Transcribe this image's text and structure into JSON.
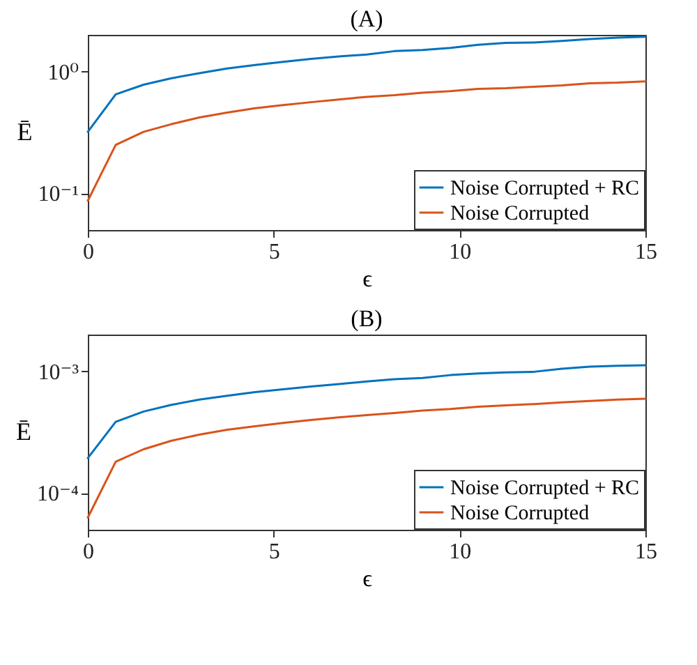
{
  "chart_data": [
    {
      "type": "line",
      "title": "(A)",
      "xlabel": "ϵ",
      "ylabel": "Ē",
      "log": "y",
      "grid": false,
      "legend": "bottom right",
      "marker": "none",
      "line_style": "solid",
      "x": [
        0,
        0.75,
        1.5,
        2.25,
        3,
        3.75,
        4.5,
        5.25,
        6,
        6.75,
        7.5,
        8.25,
        9,
        9.75,
        10.5,
        11.25,
        12,
        12.75,
        13.5,
        14.25,
        15
      ],
      "xlim": [
        0,
        15
      ],
      "xticks": [
        0,
        5,
        10,
        15
      ],
      "ylim": [
        0.05,
        2
      ],
      "yticks": [
        {
          "value": 0.1,
          "label": "10⁻¹"
        },
        {
          "value": 1,
          "label": "10⁰"
        }
      ],
      "series": [
        {
          "name": "Noise Corrupted + RC",
          "color": "#0072bd",
          "values": [
            0.32,
            0.65,
            0.78,
            0.88,
            0.97,
            1.06,
            1.13,
            1.2,
            1.27,
            1.33,
            1.38,
            1.47,
            1.5,
            1.56,
            1.66,
            1.72,
            1.73,
            1.78,
            1.85,
            1.9,
            1.93
          ]
        },
        {
          "name": "Noise Corrupted",
          "color": "#d95319",
          "values": [
            0.087,
            0.25,
            0.32,
            0.37,
            0.42,
            0.46,
            0.5,
            0.53,
            0.56,
            0.59,
            0.62,
            0.64,
            0.67,
            0.69,
            0.72,
            0.73,
            0.75,
            0.77,
            0.8,
            0.81,
            0.83
          ]
        }
      ]
    },
    {
      "type": "line",
      "title": "(B)",
      "xlabel": "ϵ",
      "ylabel": "Ē",
      "log": "y",
      "grid": false,
      "legend": "bottom right",
      "marker": "none",
      "line_style": "solid",
      "x": [
        0,
        0.75,
        1.5,
        2.25,
        3,
        3.75,
        4.5,
        5.25,
        6,
        6.75,
        7.5,
        8.25,
        9,
        9.75,
        10.5,
        11.25,
        12,
        12.75,
        13.5,
        14.25,
        15
      ],
      "xlim": [
        0,
        15
      ],
      "xticks": [
        0,
        5,
        10,
        15
      ],
      "ylim": [
        5e-05,
        0.002
      ],
      "yticks": [
        {
          "value": 0.0001,
          "label": "10⁻⁴"
        },
        {
          "value": 0.001,
          "label": "10⁻³"
        }
      ],
      "series": [
        {
          "name": "Noise Corrupted + RC",
          "color": "#0072bd",
          "values": [
            0.000194,
            0.000385,
            0.000467,
            0.00053,
            0.000585,
            0.00063,
            0.000675,
            0.00071,
            0.00075,
            0.000785,
            0.000825,
            0.00086,
            0.00088,
            0.00093,
            0.00096,
            0.00098,
            0.00099,
            0.00105,
            0.00109,
            0.00111,
            0.00112
          ]
        },
        {
          "name": "Noise Corrupted",
          "color": "#d95319",
          "values": [
            6.3e-05,
            0.000181,
            0.000229,
            0.000269,
            0.000302,
            0.000331,
            0.000354,
            0.000376,
            0.000398,
            0.000419,
            0.000437,
            0.000455,
            0.000475,
            0.00049,
            0.000512,
            0.000525,
            0.000538,
            0.000556,
            0.00057,
            0.000585,
            0.000595
          ]
        }
      ]
    }
  ]
}
